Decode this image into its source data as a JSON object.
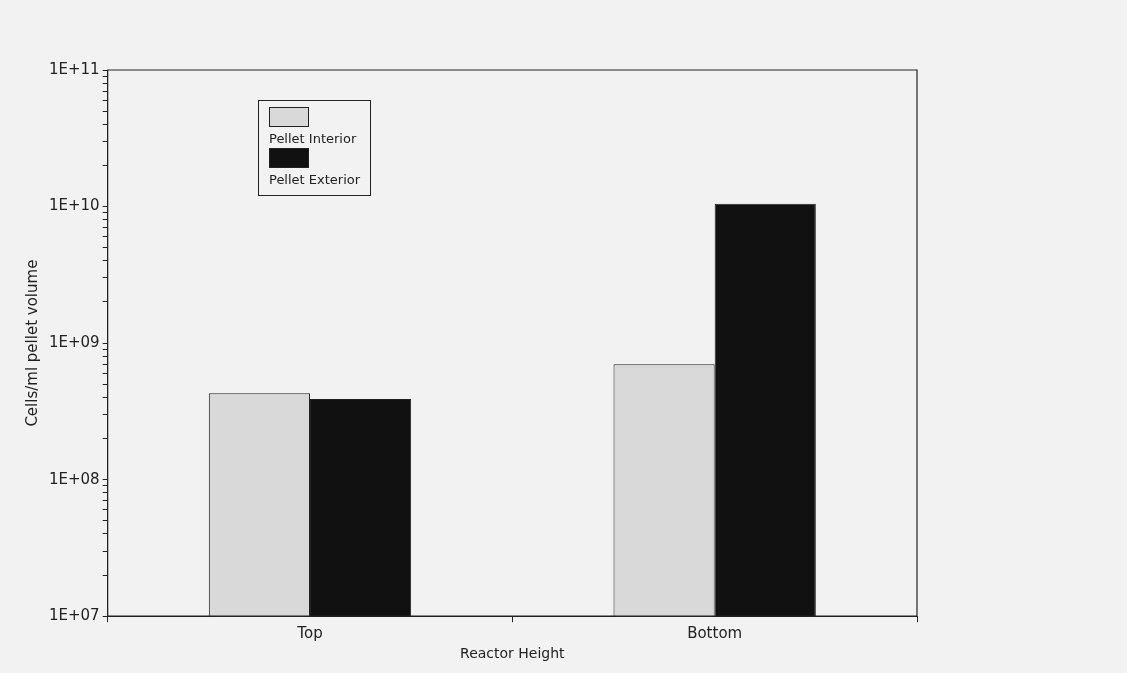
{
  "chart_data": {
    "type": "bar",
    "xlabel": "Reactor Height",
    "ylabel": "Cells/ml pellet volume",
    "categories": [
      "Top",
      "Bottom"
    ],
    "series": [
      {
        "name": "Pellet Interior",
        "color": "#d9d9d9",
        "values": [
          430000000.0,
          700000000.0
        ]
      },
      {
        "name": "Pellet Exterior",
        "color": "#111111",
        "values": [
          390000000.0,
          10500000000.0
        ]
      }
    ],
    "log": "y",
    "ylim": [
      10000000.0,
      100000000000.0
    ],
    "yticks": [
      {
        "value": 10000000.0,
        "label": "1E+07"
      },
      {
        "value": 20000000.0,
        "label": null
      },
      {
        "value": 30000000.0,
        "label": null
      },
      {
        "value": 40000000.0,
        "label": null
      },
      {
        "value": 50000000.0,
        "label": null
      },
      {
        "value": 60000000.0,
        "label": null
      },
      {
        "value": 70000000.0,
        "label": null
      },
      {
        "value": 80000000.0,
        "label": null
      },
      {
        "value": 90000000.0,
        "label": null
      },
      {
        "value": 100000000.0,
        "label": "1E+08"
      },
      {
        "value": 200000000.0,
        "label": null
      },
      {
        "value": 300000000.0,
        "label": null
      },
      {
        "value": 400000000.0,
        "label": null
      },
      {
        "value": 500000000.0,
        "label": null
      },
      {
        "value": 600000000.0,
        "label": null
      },
      {
        "value": 700000000.0,
        "label": null
      },
      {
        "value": 800000000.0,
        "label": null
      },
      {
        "value": 900000000.0,
        "label": null
      },
      {
        "value": 1000000000.0,
        "label": "1E+09"
      },
      {
        "value": 2000000000.0,
        "label": null
      },
      {
        "value": 3000000000.0,
        "label": null
      },
      {
        "value": 4000000000.0,
        "label": null
      },
      {
        "value": 5000000000.0,
        "label": null
      },
      {
        "value": 6000000000.0,
        "label": null
      },
      {
        "value": 7000000000.0,
        "label": null
      },
      {
        "value": 8000000000.0,
        "label": null
      },
      {
        "value": 9000000000.0,
        "label": null
      },
      {
        "value": 10000000000.0,
        "label": "1E+10"
      },
      {
        "value": 20000000000.0,
        "label": null
      },
      {
        "value": 30000000000.0,
        "label": null
      },
      {
        "value": 40000000000.0,
        "label": null
      },
      {
        "value": 50000000000.0,
        "label": null
      },
      {
        "value": 60000000000.0,
        "label": null
      },
      {
        "value": 70000000000.0,
        "label": null
      },
      {
        "value": 80000000000.0,
        "label": null
      },
      {
        "value": 90000000000.0,
        "label": null
      },
      {
        "value": 100000000000.0,
        "label": "1E+11"
      }
    ],
    "grid": false,
    "legend": "top left"
  }
}
